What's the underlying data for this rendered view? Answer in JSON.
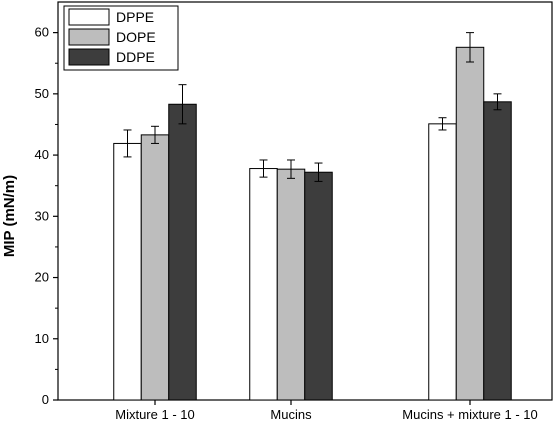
{
  "chart_data": {
    "type": "bar",
    "categories": [
      "Mixture 1 - 10",
      "Mucins",
      "Mucins + mixture 1 - 10"
    ],
    "series": [
      {
        "name": "DPPE",
        "values": [
          41.9,
          37.8,
          45.1
        ],
        "errors": [
          2.2,
          1.4,
          1.0
        ],
        "color": "#ffffff"
      },
      {
        "name": "DOPE",
        "values": [
          43.3,
          37.7,
          57.6
        ],
        "errors": [
          1.4,
          1.5,
          2.4
        ],
        "color": "#bdbdbd"
      },
      {
        "name": "DDPE",
        "values": [
          48.3,
          37.2,
          48.7
        ],
        "errors": [
          3.2,
          1.5,
          1.3
        ],
        "color": "#3d3d3d"
      }
    ],
    "xlabel": "",
    "ylabel": "MIP (mN/m)",
    "ylim": [
      0,
      65
    ],
    "yticks": [
      0,
      10,
      20,
      30,
      40,
      50,
      60
    ],
    "grid": false,
    "legend_position": "top-left"
  }
}
